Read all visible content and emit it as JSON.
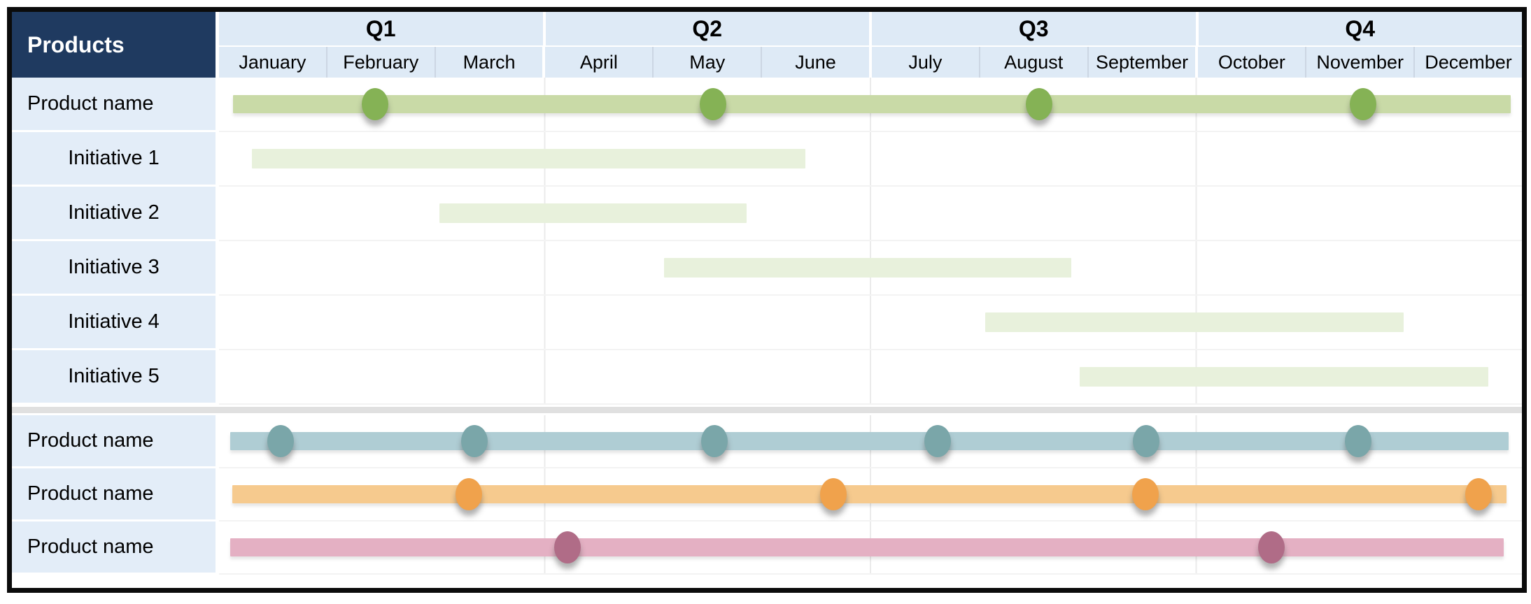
{
  "header": {
    "products_label": "Products"
  },
  "colors": {
    "header_navy": "#1F3A60",
    "header_blue": "#DEEAF6",
    "label_blue": "#E3EDF8",
    "separator_gray": "#E0E0E0",
    "green_bar": "#C9DAA7",
    "green_dot": "#85B255",
    "initiative_bar": "#E8F1DC",
    "teal_bar": "#AFCDD4",
    "teal_dot": "#7AA6A9",
    "orange_bar": "#F6CA8E",
    "orange_dot": "#F0A24C",
    "pink_bar": "#E4B0C3",
    "pink_dot": "#B06C87"
  },
  "chart_data": {
    "type": "bar",
    "variant": "gantt-roadmap",
    "title": "Products",
    "x_units": "months, 0 = start of January, 12 = end of December",
    "x_domain": [
      "January",
      "December"
    ],
    "grid": "vertical lines at quarter boundaries",
    "quarters": [
      {
        "label": "Q1",
        "months": [
          "January",
          "February",
          "March"
        ]
      },
      {
        "label": "Q2",
        "months": [
          "April",
          "May",
          "June"
        ]
      },
      {
        "label": "Q3",
        "months": [
          "July",
          "August",
          "September"
        ]
      },
      {
        "label": "Q4",
        "months": [
          "October",
          "November",
          "December"
        ]
      }
    ],
    "sections": [
      {
        "rows": [
          {
            "label": "Product name",
            "kind": "product",
            "color": "green",
            "bar": {
              "start": 0.13,
              "end": 11.9
            },
            "milestones": [
              {
                "month": "February",
                "t": 1.44
              },
              {
                "month": "May",
                "t": 4.55
              },
              {
                "month": "August",
                "t": 7.55
              },
              {
                "month": "November",
                "t": 10.54
              }
            ]
          },
          {
            "label": "Initiative 1",
            "kind": "initiative",
            "color": "initiative",
            "bar": {
              "start": 0.3,
              "end": 5.4
            },
            "milestones": []
          },
          {
            "label": "Initiative 2",
            "kind": "initiative",
            "color": "initiative",
            "bar": {
              "start": 2.03,
              "end": 4.86
            },
            "milestones": []
          },
          {
            "label": "Initiative 3",
            "kind": "initiative",
            "color": "initiative",
            "bar": {
              "start": 4.1,
              "end": 7.85
            },
            "milestones": []
          },
          {
            "label": "Initiative 4",
            "kind": "initiative",
            "color": "initiative",
            "bar": {
              "start": 7.06,
              "end": 10.91
            },
            "milestones": []
          },
          {
            "label": "Initiative 5",
            "kind": "initiative",
            "color": "initiative",
            "bar": {
              "start": 7.93,
              "end": 11.69
            },
            "milestones": []
          }
        ]
      },
      {
        "rows": [
          {
            "label": "Product name",
            "kind": "product",
            "color": "teal",
            "bar": {
              "start": 0.1,
              "end": 11.88
            },
            "milestones": [
              {
                "month": "January",
                "t": 0.57
              },
              {
                "month": "March",
                "t": 2.35
              },
              {
                "month": "May",
                "t": 4.56
              },
              {
                "month": "July",
                "t": 6.62
              },
              {
                "month": "September",
                "t": 8.54
              },
              {
                "month": "November",
                "t": 10.49
              }
            ]
          },
          {
            "label": "Product name",
            "kind": "product",
            "color": "orange",
            "bar": {
              "start": 0.12,
              "end": 11.86
            },
            "milestones": [
              {
                "month": "March",
                "t": 2.3
              },
              {
                "month": "June",
                "t": 5.66
              },
              {
                "month": "September",
                "t": 8.53
              },
              {
                "month": "December",
                "t": 11.6
              }
            ]
          },
          {
            "label": "Product name",
            "kind": "product",
            "color": "pink",
            "bar": {
              "start": 0.1,
              "end": 11.83
            },
            "milestones": [
              {
                "month": "April",
                "t": 3.21
              },
              {
                "month": "October",
                "t": 9.69
              }
            ]
          }
        ]
      }
    ]
  }
}
